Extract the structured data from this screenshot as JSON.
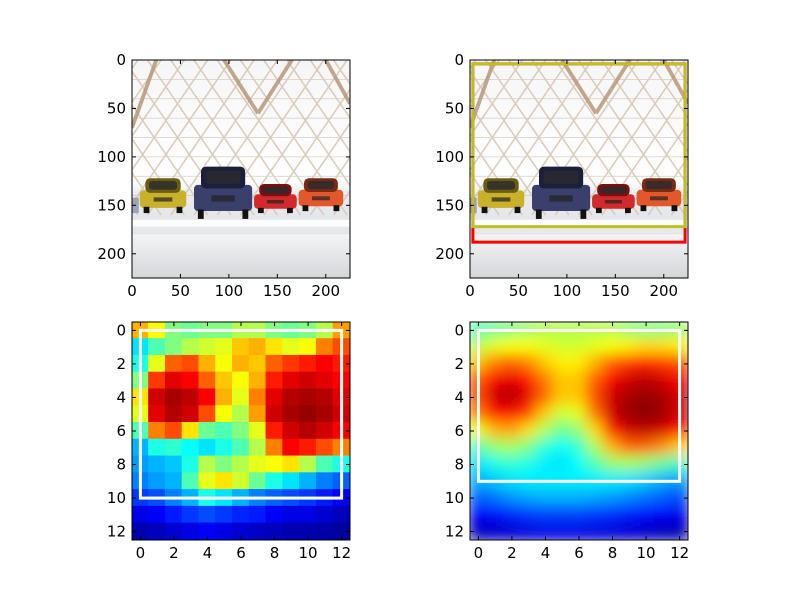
{
  "chart_data": [
    {
      "type": "image",
      "image_description": "car showroom photo: cars under a lattice ceiling",
      "xlim": [
        0,
        225
      ],
      "ylim": [
        225,
        0
      ],
      "xticks": [
        0,
        50,
        100,
        150,
        200
      ],
      "yticks": [
        0,
        50,
        100,
        150,
        200
      ],
      "boxes": []
    },
    {
      "type": "image",
      "image_description": "same photo with bounding boxes",
      "xlim": [
        0,
        225
      ],
      "ylim": [
        225,
        0
      ],
      "xticks": [
        0,
        50,
        100,
        150,
        200
      ],
      "yticks": [
        0,
        50,
        100,
        150,
        200
      ],
      "boxes": [
        {
          "x0": 3,
          "y0": 4,
          "x1": 222,
          "y1": 188,
          "color": "#ff0000"
        },
        {
          "x0": 3,
          "y0": 4,
          "x1": 222,
          "y1": 172,
          "color": "#bfbf22"
        }
      ]
    },
    {
      "type": "heatmap",
      "colormap": "jet",
      "interpolation": "nearest-blocky",
      "xlim": [
        -0.5,
        12.5
      ],
      "ylim": [
        12.5,
        -0.5
      ],
      "xticks": [
        0,
        2,
        4,
        6,
        8,
        10,
        12
      ],
      "yticks": [
        0,
        2,
        4,
        6,
        8,
        10,
        12
      ],
      "values": [
        [
          0.7,
          0.62,
          0.5,
          0.48,
          0.5,
          0.5,
          0.55,
          0.55,
          0.5,
          0.48,
          0.5,
          0.55,
          0.72
        ],
        [
          0.35,
          0.45,
          0.5,
          0.55,
          0.58,
          0.6,
          0.68,
          0.7,
          0.65,
          0.6,
          0.62,
          0.75,
          0.8
        ],
        [
          0.4,
          0.6,
          0.78,
          0.8,
          0.7,
          0.62,
          0.7,
          0.68,
          0.78,
          0.82,
          0.85,
          0.88,
          0.85
        ],
        [
          0.5,
          0.82,
          0.9,
          0.88,
          0.78,
          0.68,
          0.62,
          0.7,
          0.85,
          0.9,
          0.92,
          0.9,
          0.88
        ],
        [
          0.65,
          0.92,
          0.96,
          0.94,
          0.88,
          0.7,
          0.6,
          0.75,
          0.9,
          0.95,
          0.96,
          0.95,
          0.9
        ],
        [
          0.6,
          0.9,
          0.95,
          0.92,
          0.8,
          0.62,
          0.55,
          0.72,
          0.92,
          0.96,
          0.98,
          0.96,
          0.92
        ],
        [
          0.45,
          0.75,
          0.8,
          0.65,
          0.48,
          0.45,
          0.5,
          0.6,
          0.85,
          0.92,
          0.95,
          0.92,
          0.88
        ],
        [
          0.3,
          0.4,
          0.42,
          0.38,
          0.35,
          0.4,
          0.45,
          0.55,
          0.75,
          0.88,
          0.85,
          0.8,
          0.75
        ],
        [
          0.28,
          0.3,
          0.32,
          0.4,
          0.55,
          0.5,
          0.55,
          0.6,
          0.62,
          0.65,
          0.55,
          0.45,
          0.4
        ],
        [
          0.25,
          0.28,
          0.3,
          0.45,
          0.6,
          0.65,
          0.58,
          0.48,
          0.4,
          0.35,
          0.3,
          0.25,
          0.22
        ],
        [
          0.18,
          0.2,
          0.25,
          0.3,
          0.4,
          0.35,
          0.3,
          0.25,
          0.22,
          0.2,
          0.18,
          0.15,
          0.12
        ],
        [
          0.1,
          0.12,
          0.15,
          0.18,
          0.2,
          0.18,
          0.16,
          0.15,
          0.12,
          0.1,
          0.1,
          0.08,
          0.06
        ],
        [
          0.05,
          0.06,
          0.08,
          0.1,
          0.12,
          0.1,
          0.08,
          0.07,
          0.06,
          0.05,
          0.05,
          0.04,
          0.03
        ]
      ],
      "box": {
        "x0": 0,
        "y0": 0,
        "x1": 12,
        "y1": 10,
        "color": "#ffffff"
      }
    },
    {
      "type": "heatmap",
      "colormap": "jet",
      "interpolation": "smooth",
      "xlim": [
        -0.5,
        12.5
      ],
      "ylim": [
        12.5,
        -0.5
      ],
      "xticks": [
        0,
        2,
        4,
        6,
        8,
        10,
        12
      ],
      "yticks": [
        0,
        2,
        4,
        6,
        8,
        10,
        12
      ],
      "values": [
        [
          0.45,
          0.48,
          0.5,
          0.52,
          0.55,
          0.55,
          0.55,
          0.55,
          0.55,
          0.52,
          0.5,
          0.5,
          0.52
        ],
        [
          0.55,
          0.6,
          0.62,
          0.62,
          0.6,
          0.58,
          0.58,
          0.6,
          0.62,
          0.64,
          0.66,
          0.66,
          0.64
        ],
        [
          0.68,
          0.75,
          0.78,
          0.75,
          0.68,
          0.64,
          0.64,
          0.7,
          0.78,
          0.82,
          0.84,
          0.82,
          0.8
        ],
        [
          0.78,
          0.88,
          0.9,
          0.86,
          0.76,
          0.68,
          0.68,
          0.78,
          0.88,
          0.92,
          0.94,
          0.92,
          0.88
        ],
        [
          0.8,
          0.92,
          0.95,
          0.9,
          0.78,
          0.68,
          0.68,
          0.8,
          0.92,
          0.96,
          0.98,
          0.96,
          0.92
        ],
        [
          0.75,
          0.86,
          0.88,
          0.82,
          0.68,
          0.58,
          0.6,
          0.76,
          0.92,
          0.97,
          0.99,
          0.97,
          0.92
        ],
        [
          0.6,
          0.7,
          0.72,
          0.66,
          0.55,
          0.48,
          0.52,
          0.66,
          0.85,
          0.92,
          0.94,
          0.92,
          0.86
        ],
        [
          0.45,
          0.52,
          0.54,
          0.5,
          0.42,
          0.38,
          0.42,
          0.54,
          0.7,
          0.78,
          0.78,
          0.74,
          0.68
        ],
        [
          0.35,
          0.4,
          0.42,
          0.4,
          0.36,
          0.35,
          0.38,
          0.45,
          0.52,
          0.54,
          0.52,
          0.48,
          0.44
        ],
        [
          0.3,
          0.32,
          0.35,
          0.36,
          0.36,
          0.36,
          0.36,
          0.36,
          0.36,
          0.35,
          0.33,
          0.3,
          0.28
        ],
        [
          0.22,
          0.24,
          0.27,
          0.29,
          0.3,
          0.3,
          0.3,
          0.29,
          0.28,
          0.26,
          0.24,
          0.22,
          0.2
        ],
        [
          0.12,
          0.14,
          0.16,
          0.18,
          0.19,
          0.19,
          0.19,
          0.18,
          0.17,
          0.15,
          0.14,
          0.12,
          0.11
        ],
        [
          0.06,
          0.07,
          0.08,
          0.09,
          0.1,
          0.1,
          0.1,
          0.09,
          0.09,
          0.08,
          0.07,
          0.06,
          0.05
        ]
      ],
      "box": {
        "x0": 0,
        "y0": 0,
        "x1": 12,
        "y1": 9,
        "color": "#ffffff"
      }
    }
  ]
}
